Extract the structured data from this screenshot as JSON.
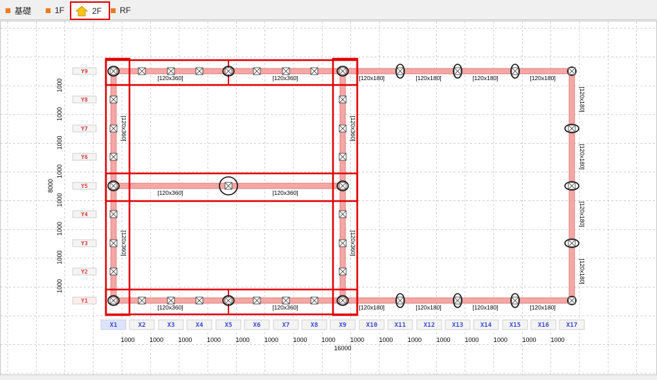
{
  "tabs": [
    {
      "label": "基礎",
      "icon": "orange-square-icon",
      "active": false
    },
    {
      "label": "1F",
      "icon": "orange-square-icon",
      "active": false
    },
    {
      "label": "2F",
      "icon": "house-icon",
      "active": true
    },
    {
      "label": "RF",
      "icon": "orange-square-icon",
      "active": false
    }
  ],
  "grid": {
    "x_labels": [
      "X1",
      "X2",
      "X3",
      "X4",
      "X5",
      "X6",
      "X7",
      "X8",
      "X9",
      "X10",
      "X11",
      "X12",
      "X13",
      "X14",
      "X15",
      "X16",
      "X17"
    ],
    "y_labels": [
      "Y9",
      "Y8",
      "Y7",
      "Y6",
      "Y5",
      "Y4",
      "Y3",
      "Y2",
      "Y1"
    ],
    "selected_x": "X1",
    "selected_y": "Y1",
    "x_spacing_labels": [
      "1000",
      "1000",
      "1000",
      "1000",
      "1000",
      "1000",
      "1000",
      "1000",
      "1000",
      "1000",
      "1000",
      "1000",
      "1000",
      "1000",
      "1000",
      "1000"
    ],
    "y_spacing_labels": [
      "1000",
      "1000",
      "1000",
      "1000",
      "1000",
      "1000",
      "1000",
      "1000"
    ],
    "x_total": "16000",
    "y_total": "8000"
  },
  "beam_labels": {
    "large": "[120x360]",
    "small": "[120x180]"
  },
  "colors": {
    "beam_fill": "#f4a7a4",
    "beam_stroke": "#c85a5a",
    "selection": "#e00000",
    "x_label": "#3a4ad8",
    "y_label": "#e03a3a",
    "tab_marker": "#f07a1e"
  }
}
